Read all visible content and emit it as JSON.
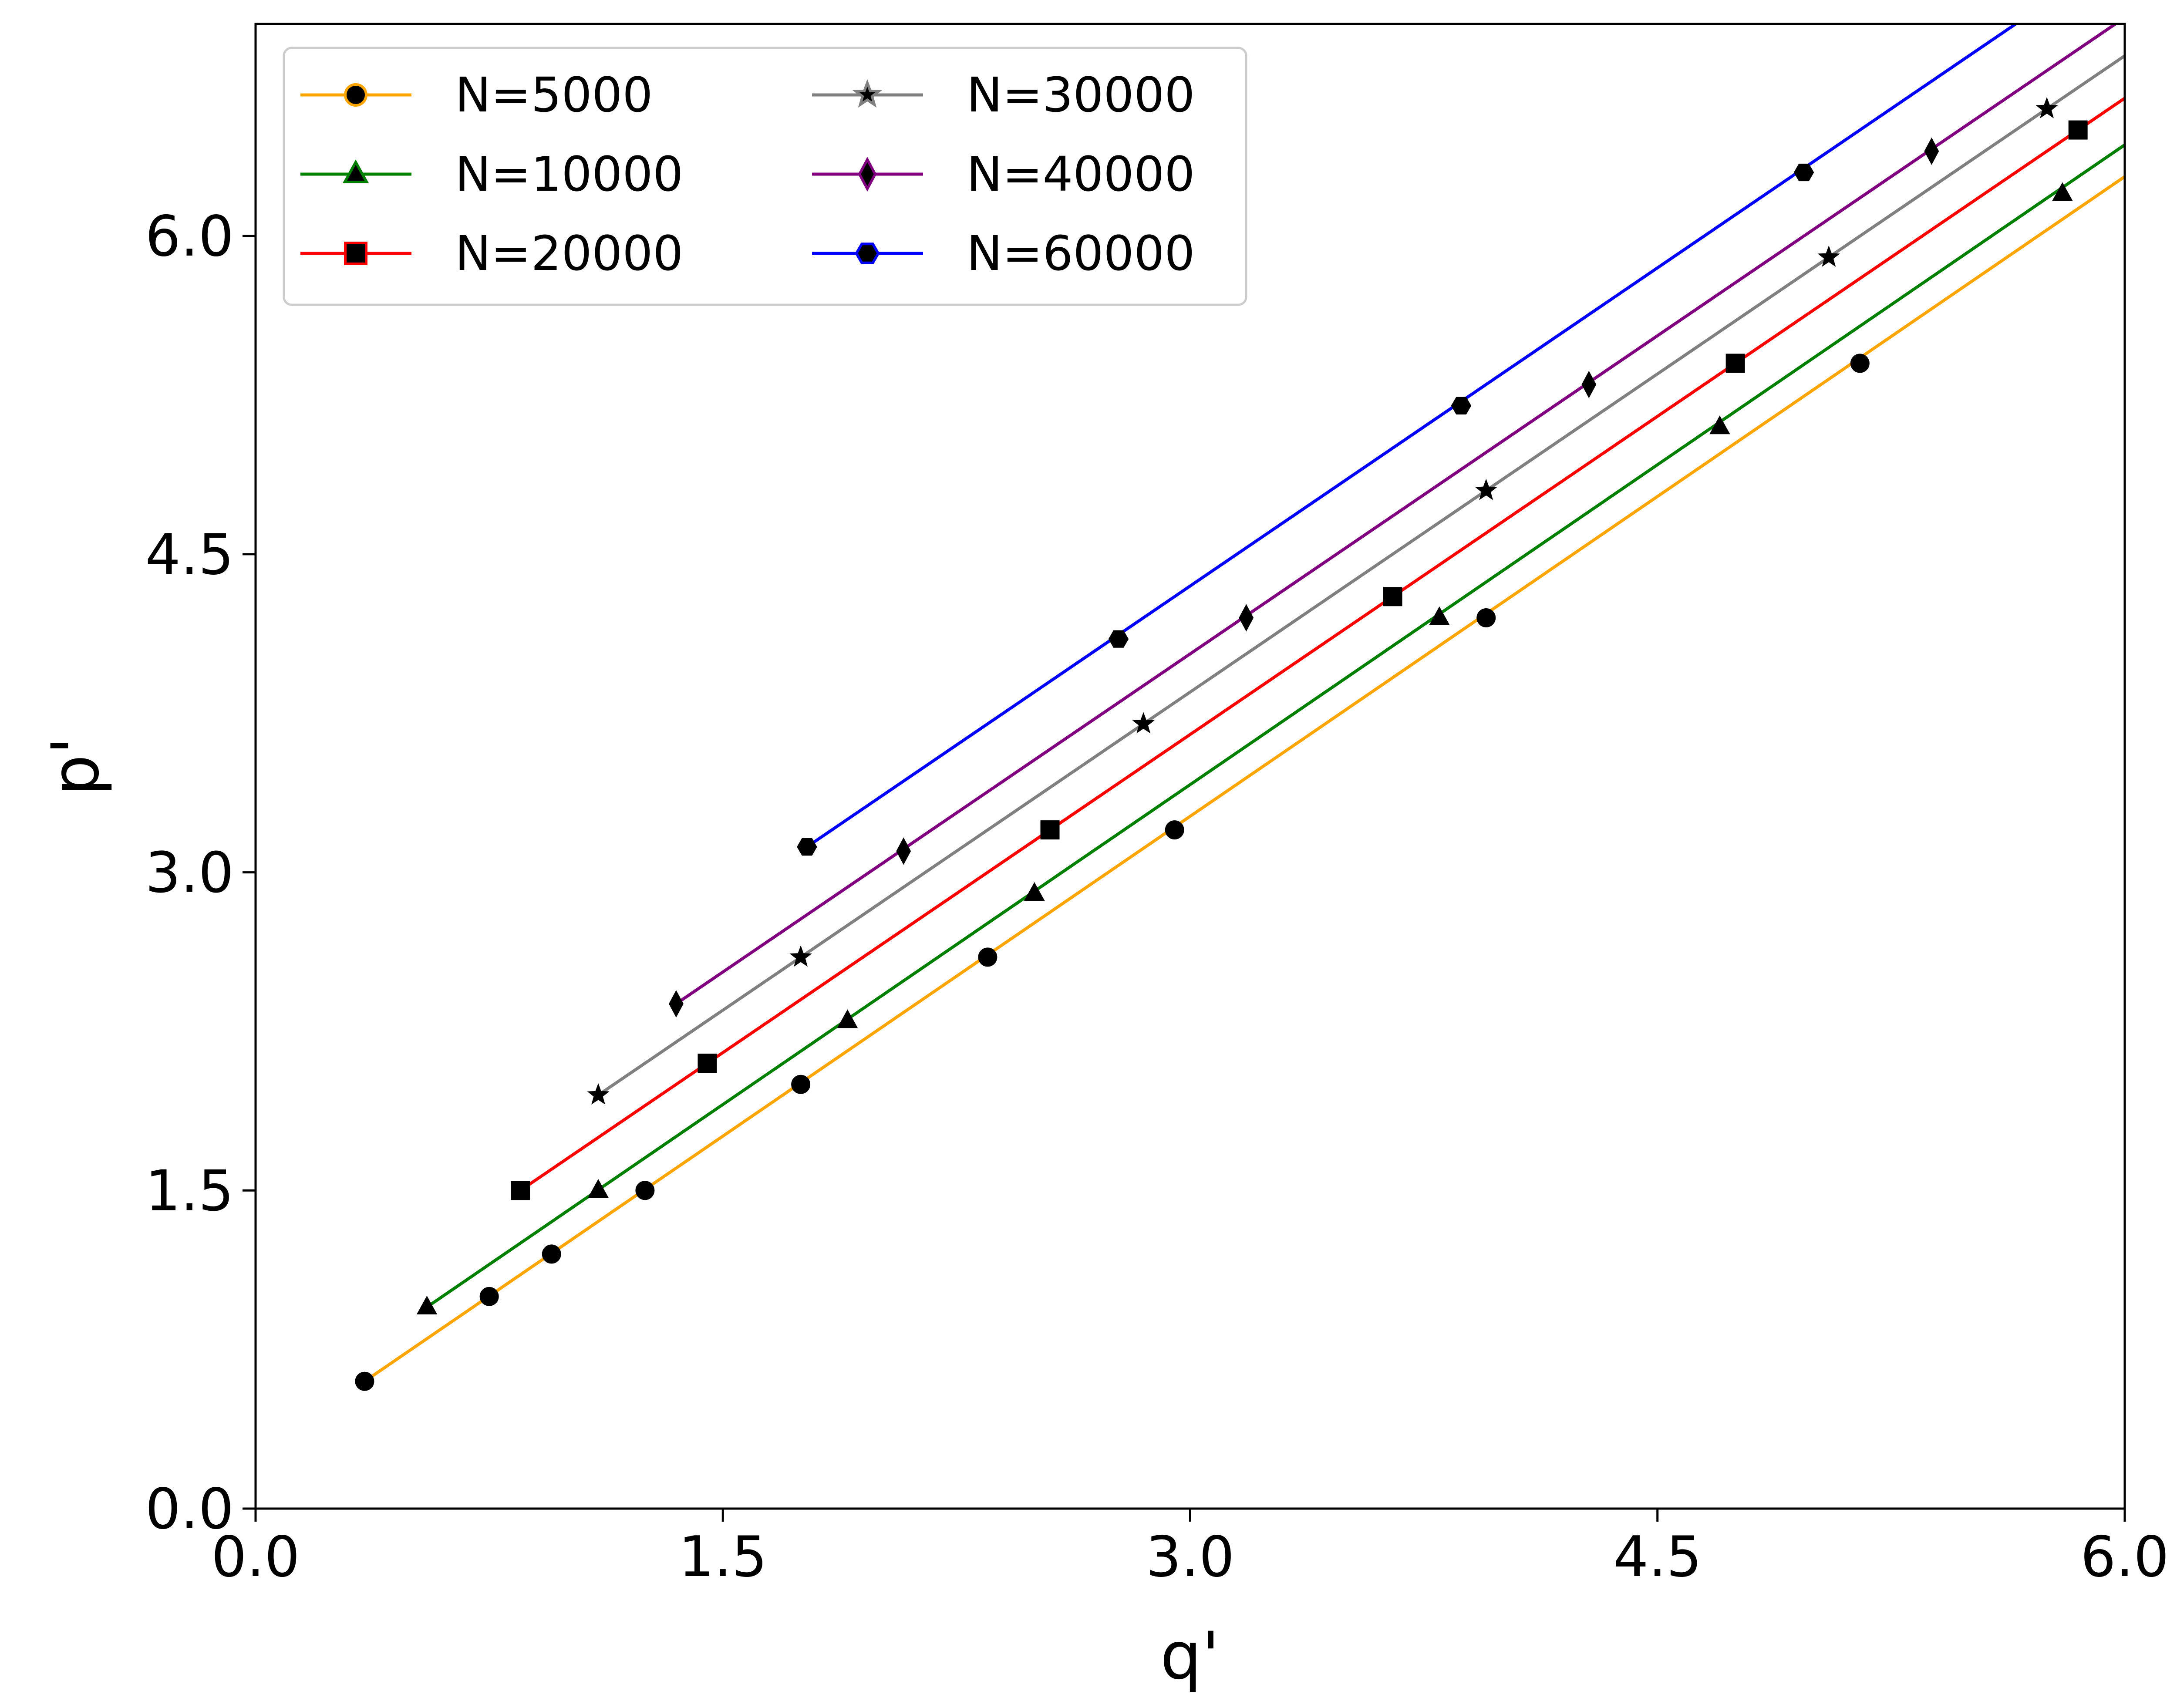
{
  "chart_data": {
    "type": "line",
    "xlabel": "q'",
    "ylabel": "p'",
    "xlim": [
      0.0,
      6.0
    ],
    "ylim": [
      0.0,
      7.0
    ],
    "xticks": [
      "0.0",
      "1.5",
      "3.0",
      "4.5",
      "6.0"
    ],
    "yticks": [
      "0.0",
      "1.5",
      "3.0",
      "4.5",
      "6.0"
    ],
    "grid": false,
    "legend_position": "top-left",
    "legend_columns": 2,
    "series": [
      {
        "name": "N=5000",
        "color": "#ffa500",
        "marker": "circle",
        "line_x": [
          0.35,
          6.0
        ],
        "line_y": [
          0.6,
          6.28
        ],
        "points_x": [
          0.35,
          0.75,
          0.95,
          1.25,
          1.75,
          2.35,
          2.95,
          3.95,
          5.15
        ],
        "points_y": [
          0.6,
          1.0,
          1.2,
          1.5,
          2.0,
          2.6,
          3.2,
          4.2,
          5.4
        ]
      },
      {
        "name": "N=10000",
        "color": "#008000",
        "marker": "triangle",
        "line_x": [
          0.55,
          6.0
        ],
        "line_y": [
          0.95,
          6.43
        ],
        "points_x": [
          0.55,
          1.1,
          1.9,
          2.5,
          3.8,
          4.7,
          5.8
        ],
        "points_y": [
          0.95,
          1.5,
          2.3,
          2.9,
          4.2,
          5.1,
          6.2
        ]
      },
      {
        "name": "N=20000",
        "color": "#ff0000",
        "marker": "square",
        "line_x": [
          0.85,
          6.0
        ],
        "line_y": [
          1.5,
          6.65
        ],
        "points_x": [
          0.85,
          1.45,
          2.55,
          3.65,
          4.75,
          5.85
        ],
        "points_y": [
          1.5,
          2.1,
          3.2,
          4.3,
          5.4,
          6.5
        ]
      },
      {
        "name": "N=30000",
        "color": "#808080",
        "marker": "star",
        "line_x": [
          1.1,
          6.0
        ],
        "line_y": [
          1.95,
          6.85
        ],
        "points_x": [
          1.1,
          1.75,
          2.85,
          3.95,
          5.05,
          5.75
        ],
        "points_y": [
          1.95,
          2.6,
          3.7,
          4.8,
          5.9,
          6.6
        ]
      },
      {
        "name": "N=40000",
        "color": "#800080",
        "marker": "diamond",
        "line_x": [
          1.35,
          6.0
        ],
        "line_y": [
          2.38,
          7.03
        ],
        "points_x": [
          1.35,
          2.08,
          3.18,
          4.28,
          5.38
        ],
        "points_y": [
          2.38,
          3.1,
          4.2,
          5.3,
          6.4
        ]
      },
      {
        "name": "N=60000",
        "color": "#0000ff",
        "marker": "hexagon",
        "line_x": [
          1.77,
          5.7
        ],
        "line_y": [
          3.12,
          7.05
        ],
        "points_x": [
          1.77,
          2.77,
          3.87,
          4.97
        ],
        "points_y": [
          3.12,
          4.1,
          5.2,
          6.3
        ]
      }
    ]
  }
}
